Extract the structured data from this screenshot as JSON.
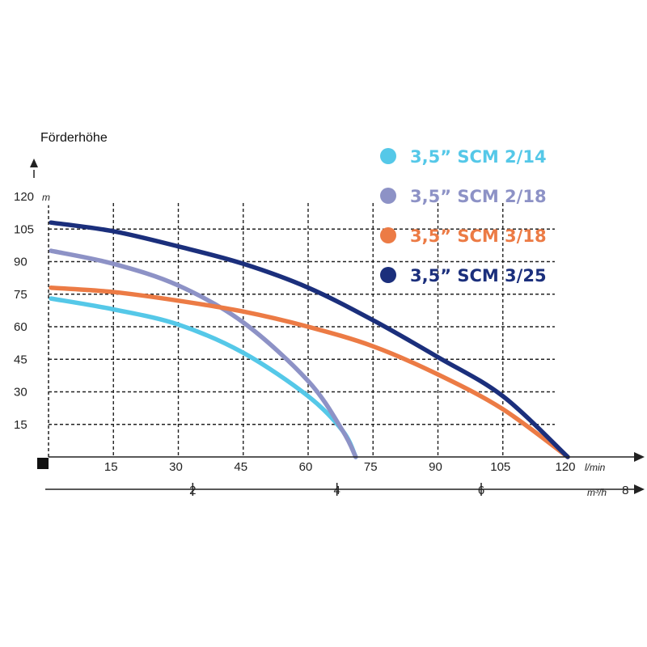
{
  "chart_data": {
    "type": "line",
    "ylabel": "Förderhöhe",
    "y_unit": "m",
    "x_unit": "l/min",
    "x2_unit": "m³/h",
    "ylim": [
      0,
      120
    ],
    "xlim": [
      0,
      120
    ],
    "y_ticks": [
      15,
      30,
      45,
      60,
      75,
      90,
      105,
      120
    ],
    "x_ticks": [
      15,
      30,
      45,
      60,
      75,
      90,
      105,
      120
    ],
    "x2_ticks": [
      2,
      4,
      6,
      8
    ],
    "grid": true,
    "legend_position": "top-right",
    "series": [
      {
        "name": "3,5” SCM 2/14",
        "color": "#55c8e8",
        "x": [
          0,
          15,
          30,
          45,
          60,
          68,
          71
        ],
        "y": [
          73,
          68,
          61,
          48,
          28,
          12,
          0
        ]
      },
      {
        "name": "3,5” SCM 2/18",
        "color": "#8d92c6",
        "x": [
          0,
          15,
          30,
          45,
          60,
          68,
          71
        ],
        "y": [
          95,
          89,
          79,
          62,
          35,
          12,
          0
        ]
      },
      {
        "name": "3,5” SCM 3/18",
        "color": "#ec7b45",
        "x": [
          0,
          15,
          30,
          45,
          60,
          75,
          90,
          105,
          120
        ],
        "y": [
          78,
          76,
          72,
          67,
          60,
          51,
          38,
          22,
          0
        ]
      },
      {
        "name": "3,5” SCM 3/25",
        "color": "#1b2f7c",
        "x": [
          0,
          15,
          30,
          45,
          60,
          75,
          90,
          105,
          120
        ],
        "y": [
          108,
          104,
          97,
          89,
          78,
          63,
          46,
          28,
          0
        ]
      }
    ]
  }
}
